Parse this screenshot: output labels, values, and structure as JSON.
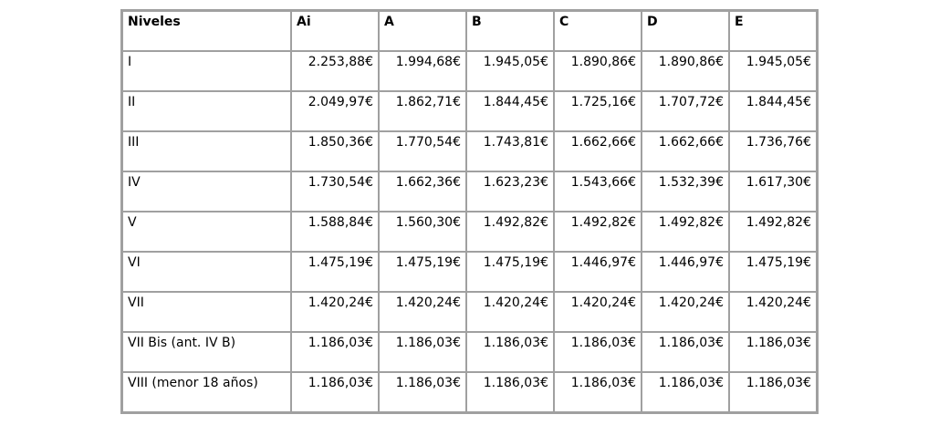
{
  "page": {
    "background": "#ffffff"
  },
  "style": {
    "grid_border_color": "#a0a0a0",
    "cell_background": "#ffffff",
    "text_color": "#000000"
  },
  "chart_data": {
    "type": "table",
    "title": "",
    "columns": [
      "Niveles",
      "Ai",
      "A",
      "B",
      "C",
      "D",
      "E"
    ],
    "rows": [
      {
        "nivel": "I",
        "values": [
          "2.253,88€",
          "1.994,68€",
          "1.945,05€",
          "1.890,86€",
          "1.890,86€",
          "1.945,05€"
        ]
      },
      {
        "nivel": "II",
        "values": [
          "2.049,97€",
          "1.862,71€",
          "1.844,45€",
          "1.725,16€",
          "1.707,72€",
          "1.844,45€"
        ]
      },
      {
        "nivel": "III",
        "values": [
          "1.850,36€",
          "1.770,54€",
          "1.743,81€",
          "1.662,66€",
          "1.662,66€",
          "1.736,76€"
        ]
      },
      {
        "nivel": "IV",
        "values": [
          "1.730,54€",
          "1.662,36€",
          "1.623,23€",
          "1.543,66€",
          "1.532,39€",
          "1.617,30€"
        ]
      },
      {
        "nivel": "V",
        "values": [
          "1.588,84€",
          "1.560,30€",
          "1.492,82€",
          "1.492,82€",
          "1.492,82€",
          "1.492,82€"
        ]
      },
      {
        "nivel": "VI",
        "values": [
          "1.475,19€",
          "1.475,19€",
          "1.475,19€",
          "1.446,97€",
          "1.446,97€",
          "1.475,19€"
        ]
      },
      {
        "nivel": "VII",
        "values": [
          "1.420,24€",
          "1.420,24€",
          "1.420,24€",
          "1.420,24€",
          "1.420,24€",
          "1.420,24€"
        ]
      },
      {
        "nivel": "VII Bis (ant. IV B)",
        "values": [
          "1.186,03€",
          "1.186,03€",
          "1.186,03€",
          "1.186,03€",
          "1.186,03€",
          "1.186,03€"
        ]
      },
      {
        "nivel": "VIII (menor 18 años)",
        "values": [
          "1.186,03€",
          "1.186,03€",
          "1.186,03€",
          "1.186,03€",
          "1.186,03€",
          "1.186,03€"
        ]
      }
    ]
  }
}
